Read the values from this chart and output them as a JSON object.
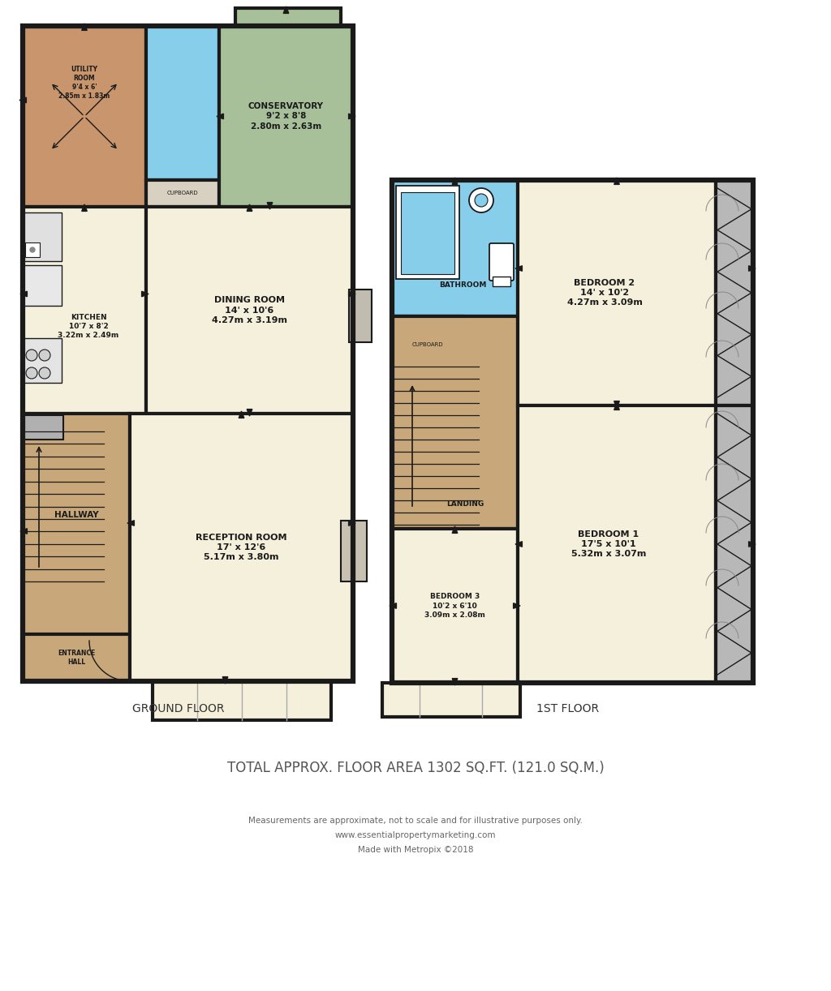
{
  "bg_color": "#ffffff",
  "wall_color": "#1a1a1a",
  "wall_lw": 3.0,
  "room_colors": {
    "utility": "#c8956c",
    "conservatory": "#a8c09a",
    "bathroom_ground": "#87ceeb",
    "kitchen": "#f5f0dc",
    "dining": "#f5f0dc",
    "hallway": "#c8a87a",
    "reception": "#f5f0dc",
    "entrance": "#c8a87a",
    "bathroom_upper": "#87ceeb",
    "landing": "#c8a87a",
    "bedroom1": "#f5f0dc",
    "bedroom2": "#f5f0dc",
    "bedroom3": "#f5f0dc",
    "wardrobe": "#b8b8b8"
  },
  "text_color": "#1a1a1a",
  "footer_text": [
    "TOTAL APPROX. FLOOR AREA 1302 SQ.FT. (121.0 SQ.M.)",
    "Measurements are approximate, not to scale and for illustrative purposes only.",
    "www.essentialpropertymarketing.com",
    "Made with Metropix ©2018"
  ],
  "ground_floor_label": "GROUND FLOOR",
  "first_floor_label": "1ST FLOOR"
}
